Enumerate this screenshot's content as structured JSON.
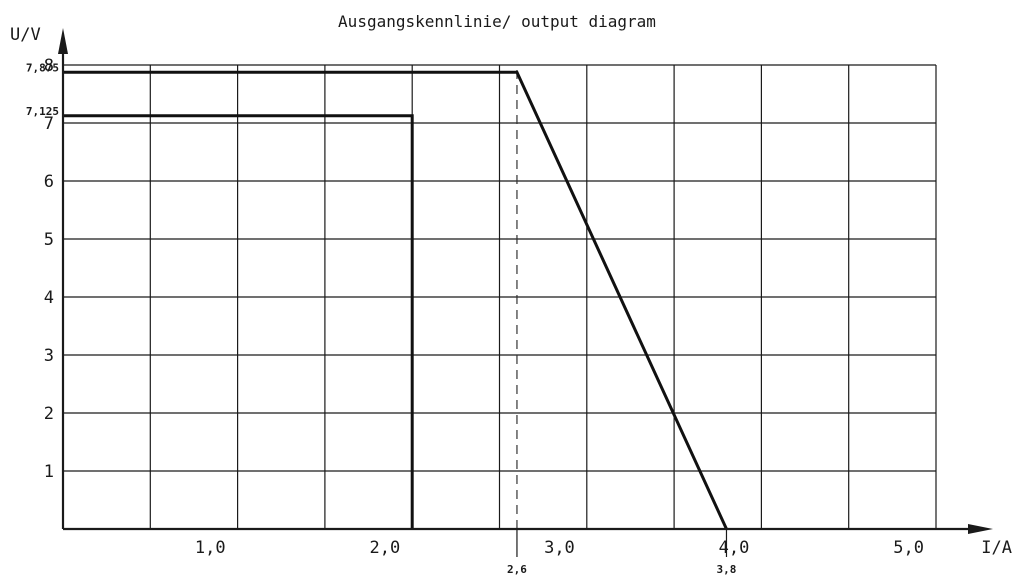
{
  "chart_data": {
    "type": "line",
    "title": "Ausgangskennlinie/ output diagram",
    "xlabel": "I/A",
    "ylabel": "U/V",
    "xlim": [
      0,
      5.0
    ],
    "ylim": [
      0,
      8
    ],
    "grid": true,
    "x_ticks": [
      {
        "value": 1.0,
        "label": "1,0"
      },
      {
        "value": 2.0,
        "label": "2,0"
      },
      {
        "value": 3.0,
        "label": "3,0"
      },
      {
        "value": 4.0,
        "label": "4,0"
      },
      {
        "value": 5.0,
        "label": "5,0"
      }
    ],
    "y_ticks": [
      {
        "value": 1,
        "label": "1"
      },
      {
        "value": 2,
        "label": "2"
      },
      {
        "value": 3,
        "label": "3"
      },
      {
        "value": 4,
        "label": "4"
      },
      {
        "value": 5,
        "label": "5"
      },
      {
        "value": 6,
        "label": "6"
      },
      {
        "value": 7,
        "label": "7"
      },
      {
        "value": 8,
        "label": "8"
      }
    ],
    "x_annotations": [
      {
        "value": 2.6,
        "label": "2,6"
      },
      {
        "value": 3.8,
        "label": "3,8"
      }
    ],
    "y_annotations": [
      {
        "value": 7.875,
        "label": "7,875"
      },
      {
        "value": 7.125,
        "label": "7,125"
      }
    ],
    "series": [
      {
        "x": [
          0,
          2.6,
          3.8
        ],
        "y": [
          7.875,
          7.875,
          0
        ]
      },
      {
        "x": [
          0,
          2.0,
          2.0
        ],
        "y": [
          7.125,
          7.125,
          0
        ]
      }
    ],
    "reference_lines": [
      {
        "x": 2.6
      }
    ]
  }
}
